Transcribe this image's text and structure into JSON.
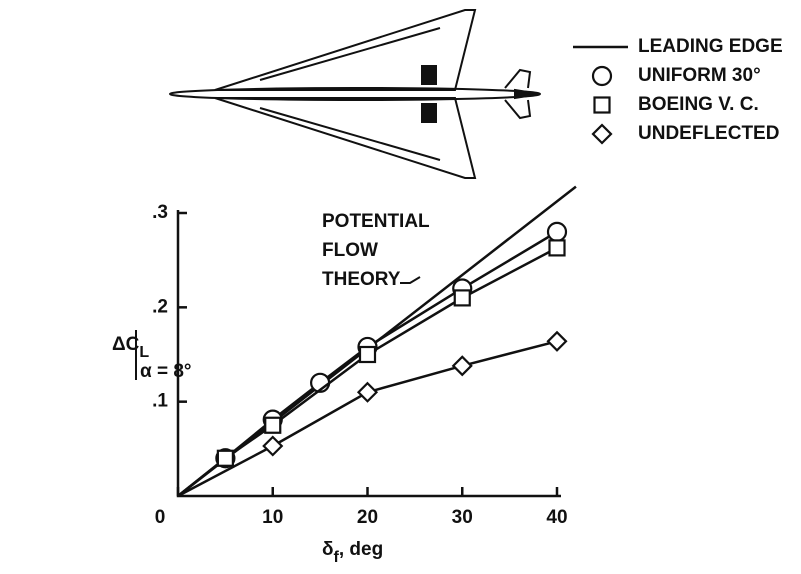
{
  "chart_data": {
    "type": "line",
    "ylabel": {
      "main": "ΔC",
      "sub": "L",
      "cond": "α = 8°"
    },
    "xlabel": {
      "main": "δ",
      "sub": "f",
      "rest": ", deg"
    },
    "xlim": [
      0,
      40
    ],
    "ylim": [
      0,
      0.3
    ],
    "xticks": [
      0,
      10,
      20,
      30,
      40
    ],
    "yticks": [
      {
        "value": 0.1,
        "label": ".1"
      },
      {
        "value": 0.2,
        "label": ".2"
      },
      {
        "value": 0.3,
        "label": ".3"
      }
    ],
    "line_legend": "LEADING EDGE",
    "theory": {
      "label": [
        "POTENTIAL",
        "FLOW",
        "THEORY"
      ],
      "x": [
        0,
        42
      ],
      "values": [
        0,
        0.328
      ]
    },
    "lines_from_origin": true,
    "series": [
      {
        "name": "UNIFORM 30°",
        "marker": "circle",
        "x": [
          5,
          10,
          15,
          20,
          30,
          40
        ],
        "values": [
          0.04,
          0.081,
          0.12,
          0.158,
          0.22,
          0.28
        ]
      },
      {
        "name": "BOEING V. C.",
        "marker": "square",
        "x": [
          5,
          10,
          20,
          30,
          40
        ],
        "values": [
          0.04,
          0.075,
          0.15,
          0.21,
          0.263
        ]
      },
      {
        "name": "UNDEFLECTED",
        "marker": "diamond",
        "x": [
          10,
          20,
          30,
          40
        ],
        "values": [
          0.053,
          0.11,
          0.138,
          0.164
        ]
      }
    ]
  }
}
